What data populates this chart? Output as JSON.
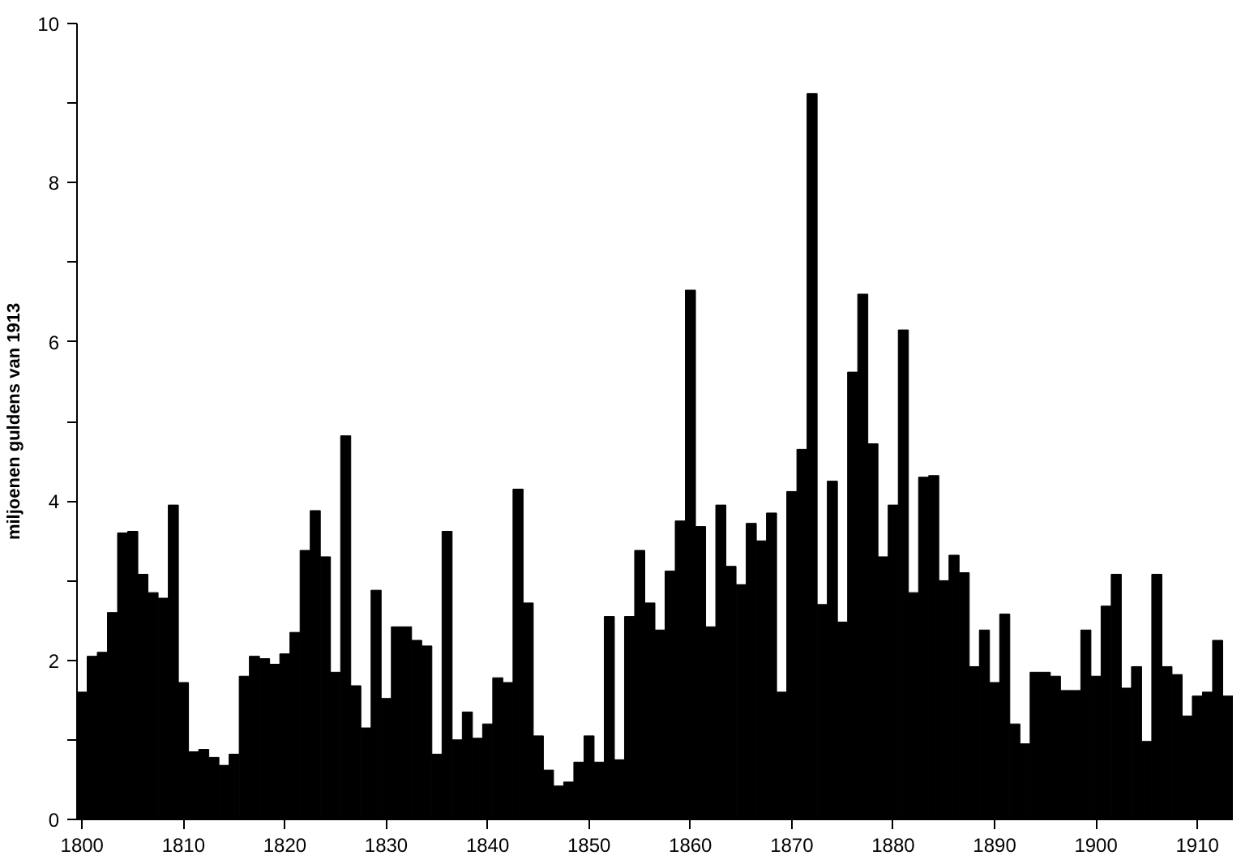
{
  "chart_data": {
    "type": "bar",
    "ylabel": "miljoenen guldens van 1913",
    "color": "#000000",
    "x": [
      1800,
      1801,
      1802,
      1803,
      1804,
      1805,
      1806,
      1807,
      1808,
      1809,
      1810,
      1811,
      1812,
      1813,
      1814,
      1815,
      1816,
      1817,
      1818,
      1819,
      1820,
      1821,
      1822,
      1823,
      1824,
      1825,
      1826,
      1827,
      1828,
      1829,
      1830,
      1831,
      1832,
      1833,
      1834,
      1835,
      1836,
      1837,
      1838,
      1839,
      1840,
      1841,
      1842,
      1843,
      1844,
      1845,
      1846,
      1847,
      1848,
      1849,
      1850,
      1851,
      1852,
      1853,
      1854,
      1855,
      1856,
      1857,
      1858,
      1859,
      1860,
      1861,
      1862,
      1863,
      1864,
      1865,
      1866,
      1867,
      1868,
      1869,
      1870,
      1871,
      1872,
      1873,
      1874,
      1875,
      1876,
      1877,
      1878,
      1879,
      1880,
      1881,
      1882,
      1883,
      1884,
      1885,
      1886,
      1887,
      1888,
      1889,
      1890,
      1891,
      1892,
      1893,
      1894,
      1895,
      1896,
      1897,
      1898,
      1899,
      1900,
      1901,
      1902,
      1903,
      1904,
      1905,
      1906,
      1907,
      1908,
      1909,
      1910,
      1911,
      1912,
      1913
    ],
    "values": [
      1.6,
      2.05,
      2.1,
      2.6,
      3.6,
      3.62,
      3.08,
      2.85,
      2.78,
      3.95,
      1.72,
      0.85,
      0.88,
      0.78,
      0.68,
      0.82,
      1.8,
      2.05,
      2.02,
      1.95,
      2.08,
      2.35,
      3.38,
      3.88,
      3.3,
      1.85,
      4.82,
      1.68,
      1.15,
      2.88,
      1.52,
      2.42,
      2.42,
      2.25,
      2.18,
      0.82,
      3.62,
      1.0,
      1.35,
      1.02,
      1.2,
      1.78,
      1.72,
      4.15,
      2.72,
      1.05,
      0.62,
      0.42,
      0.47,
      0.72,
      1.05,
      0.72,
      2.55,
      0.75,
      2.55,
      3.38,
      2.72,
      2.38,
      3.12,
      3.75,
      6.65,
      3.68,
      2.42,
      3.95,
      3.18,
      2.95,
      3.72,
      3.5,
      3.85,
      1.6,
      4.12,
      4.65,
      9.12,
      2.7,
      4.25,
      2.48,
      5.62,
      6.6,
      4.72,
      3.3,
      3.95,
      6.15,
      2.85,
      4.3,
      4.32,
      3.0,
      3.32,
      3.1,
      1.92,
      2.38,
      1.72,
      2.58,
      1.2,
      0.95,
      1.85,
      1.85,
      1.8,
      1.62,
      1.62,
      2.38,
      1.8,
      2.68,
      3.08,
      1.65,
      1.92,
      0.98,
      3.08,
      1.92,
      1.82,
      1.3,
      1.55,
      1.6,
      2.25,
      1.55
    ],
    "xlim": [
      1799.5,
      1913.5
    ],
    "xticks": [
      1800,
      1810,
      1820,
      1830,
      1840,
      1850,
      1860,
      1870,
      1880,
      1890,
      1900,
      1910
    ],
    "ylim": [
      0,
      10
    ],
    "yticks": [
      0,
      {
        "value": 1,
        "label": null
      },
      2,
      {
        "value": 3,
        "label": null
      },
      4,
      {
        "value": 5,
        "label": null
      },
      6,
      {
        "value": 7,
        "label": null
      },
      8,
      {
        "value": 9,
        "label": null
      },
      10
    ],
    "grid": false
  }
}
